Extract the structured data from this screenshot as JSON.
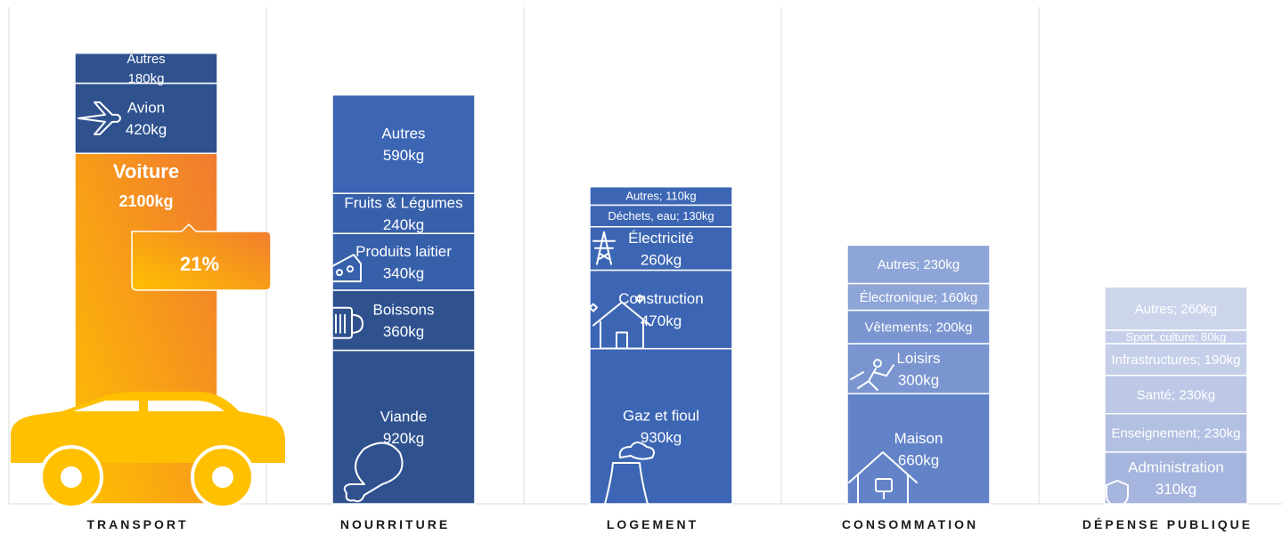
{
  "chart_data": {
    "type": "bar",
    "stacked": true,
    "grid": "vertical separators",
    "unit": "kg",
    "categories": [
      "TRANSPORT",
      "NOURRITURE",
      "LOGEMENT",
      "CONSOMMATION",
      "DÉPENSE PUBLIQUE"
    ],
    "stacks": [
      {
        "category": "TRANSPORT",
        "highlight": {
          "segment": "Voiture",
          "percent_label": "21%",
          "color_top": "#f07a30",
          "color_bottom": "#ffc000"
        },
        "segments": [
          {
            "name": "Voiture",
            "value": 2100,
            "label_name": "Voiture",
            "label_value": "2100kg",
            "color": "#f5a020",
            "icon": "car-icon"
          },
          {
            "name": "Avion",
            "value": 420,
            "label_name": "Avion",
            "label_value": "420kg",
            "color": "#2f528f",
            "icon": "airplane-icon"
          },
          {
            "name": "Autres",
            "value": 180,
            "label_name": "Autres",
            "label_value": "180kg",
            "color": "#2f528f",
            "icon": ""
          }
        ]
      },
      {
        "category": "NOURRITURE",
        "segments": [
          {
            "name": "Viande",
            "value": 920,
            "label_name": "Viande",
            "label_value": "920kg",
            "color": "#2f528f",
            "icon": "chicken-leg-icon"
          },
          {
            "name": "Boissons",
            "value": 360,
            "label_name": "Boissons",
            "label_value": "360kg",
            "color": "#2f528f",
            "icon": "beer-mug-icon"
          },
          {
            "name": "Produits laitier",
            "value": 340,
            "label_name": "Produits laitier",
            "label_value": "340kg",
            "color": "#3760ab",
            "icon": "cheese-icon"
          },
          {
            "name": "Fruits & Légumes",
            "value": 240,
            "label_name": "Fruits & Légumes",
            "label_value": "240kg",
            "color": "#3760ab",
            "icon": ""
          },
          {
            "name": "Autres",
            "value": 590,
            "label_name": "Autres",
            "label_value": "590kg",
            "color": "#3c66b4",
            "icon": ""
          }
        ]
      },
      {
        "category": "LOGEMENT",
        "segments": [
          {
            "name": "Gaz et fioul",
            "value": 930,
            "label_name": "Gaz et fioul",
            "label_value": "930kg",
            "color": "#3c66b4",
            "icon": "factory-icon"
          },
          {
            "name": "Construction",
            "value": 470,
            "label_name": "Construction",
            "label_value": "470kg",
            "color": "#3c66b4",
            "icon": "house-icon"
          },
          {
            "name": "Électricité",
            "value": 260,
            "label_name": "Électricité",
            "label_value": "260kg",
            "color": "#3c66b4",
            "icon": "pylon-icon"
          },
          {
            "name": "Déchets, eau",
            "value": 130,
            "label_name": "Déchets, eau; 130kg",
            "label_value": "",
            "color": "#3c66b4",
            "icon": ""
          },
          {
            "name": "Autres",
            "value": 110,
            "label_name": "Autres; 110kg",
            "label_value": "",
            "color": "#3c66b4",
            "icon": ""
          }
        ]
      },
      {
        "category": "CONSOMMATION",
        "segments": [
          {
            "name": "Maison",
            "value": 660,
            "label_name": "Maison",
            "label_value": "660kg",
            "color": "#6383c8",
            "icon": "home-icon"
          },
          {
            "name": "Loisirs",
            "value": 300,
            "label_name": "Loisirs",
            "label_value": "300kg",
            "color": "#7a95d0",
            "icon": "cricket-icon"
          },
          {
            "name": "Vêtements",
            "value": 200,
            "label_name": "Vêtements; 200kg",
            "label_value": "",
            "color": "#7a95d0",
            "icon": ""
          },
          {
            "name": "Électronique",
            "value": 160,
            "label_name": "Électronique; 160kg",
            "label_value": "",
            "color": "#8ea5d8",
            "icon": ""
          },
          {
            "name": "Autres",
            "value": 230,
            "label_name": "Autres; 230kg",
            "label_value": "",
            "color": "#8ea5d8",
            "icon": ""
          }
        ]
      },
      {
        "category": "DÉPENSE PUBLIQUE",
        "segments": [
          {
            "name": "Administration",
            "value": 310,
            "label_name": "Administration",
            "label_value": "310kg",
            "color": "#a6b5dd",
            "icon": "shield-icon"
          },
          {
            "name": "Enseignement",
            "value": 230,
            "label_name": "Enseignement; 230kg",
            "label_value": "",
            "color": "#b2c0e2",
            "icon": ""
          },
          {
            "name": "Santé",
            "value": 230,
            "label_name": "Santé; 230kg",
            "label_value": "",
            "color": "#bcc8e6",
            "icon": ""
          },
          {
            "name": "Infrastructures",
            "value": 190,
            "label_name": "Infrastructures; 190kg",
            "label_value": "",
            "color": "#c5cfea",
            "icon": ""
          },
          {
            "name": "Sport, culture",
            "value": 80,
            "label_name": "Sport, culture; 80kg",
            "label_value": "",
            "color": "#c5cfea",
            "icon": ""
          },
          {
            "name": "Autres",
            "value": 260,
            "label_name": "Autres; 260kg",
            "label_value": "",
            "color": "#cdd5ec",
            "icon": ""
          }
        ]
      }
    ]
  }
}
